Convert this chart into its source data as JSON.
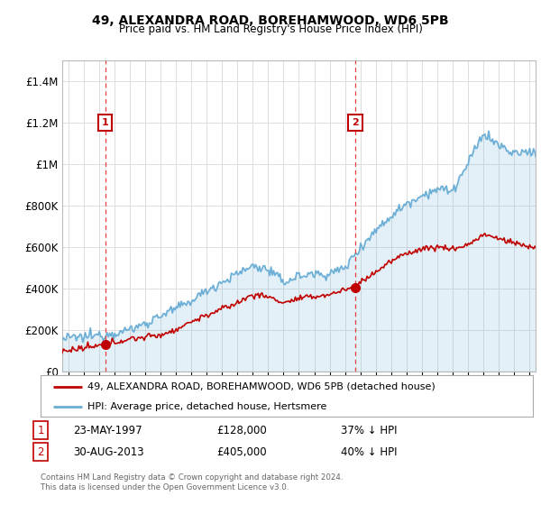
{
  "title": "49, ALEXANDRA ROAD, BOREHAMWOOD, WD6 5PB",
  "subtitle": "Price paid vs. HM Land Registry's House Price Index (HPI)",
  "ylabel_ticks": [
    "£0",
    "£200K",
    "£400K",
    "£600K",
    "£800K",
    "£1M",
    "£1.2M",
    "£1.4M"
  ],
  "ylim": [
    0,
    1500000
  ],
  "yticks": [
    0,
    200000,
    400000,
    600000,
    800000,
    1000000,
    1200000,
    1400000
  ],
  "sale1": {
    "date_num": 1997.39,
    "price": 128000,
    "label": "1",
    "date_str": "23-MAY-1997",
    "pct": "37% ↓ HPI"
  },
  "sale2": {
    "date_num": 2013.66,
    "price": 405000,
    "label": "2",
    "date_str": "30-AUG-2013",
    "pct": "40% ↓ HPI"
  },
  "hpi_color": "#6BAED6",
  "price_color": "#C00000",
  "vline_color": "#E84040",
  "background_color": "#FFFFFF",
  "grid_color": "#DDDDDD",
  "legend_entry1": "49, ALEXANDRA ROAD, BOREHAMWOOD, WD6 5PB (detached house)",
  "legend_entry2": "HPI: Average price, detached house, Hertsmere",
  "footer": "Contains HM Land Registry data © Crown copyright and database right 2024.\nThis data is licensed under the Open Government Licence v3.0.",
  "xlim_start": 1994.6,
  "xlim_end": 2025.4,
  "hpi_key_years": [
    1994.6,
    1995,
    1996,
    1997,
    1998,
    1999,
    2000,
    2001,
    2002,
    2003,
    2004,
    2005,
    2006,
    2007,
    2008,
    2009,
    2010,
    2011,
    2012,
    2013,
    2014,
    2015,
    2016,
    2017,
    2018,
    2019,
    2020,
    2021,
    2022,
    2023,
    2024,
    2025
  ],
  "hpi_key_values": [
    155000,
    160000,
    165000,
    175000,
    185000,
    200000,
    230000,
    270000,
    300000,
    340000,
    390000,
    430000,
    470000,
    510000,
    490000,
    430000,
    460000,
    470000,
    470000,
    500000,
    600000,
    680000,
    750000,
    810000,
    850000,
    880000,
    870000,
    1000000,
    1150000,
    1090000,
    1050000,
    1060000
  ],
  "price_key_years": [
    1994.6,
    1995,
    1996,
    1997,
    1997.39,
    1998,
    1999,
    2000,
    2001,
    2002,
    2003,
    2004,
    2005,
    2006,
    2007,
    2008,
    2009,
    2010,
    2011,
    2012,
    2013,
    2013.66,
    2014,
    2015,
    2016,
    2017,
    2018,
    2019,
    2020,
    2021,
    2022,
    2023,
    2024,
    2025
  ],
  "price_key_values": [
    95000,
    100000,
    110000,
    122000,
    128000,
    140000,
    155000,
    165000,
    175000,
    200000,
    240000,
    270000,
    300000,
    330000,
    370000,
    360000,
    330000,
    350000,
    360000,
    370000,
    395000,
    405000,
    430000,
    480000,
    530000,
    570000,
    590000,
    600000,
    590000,
    610000,
    660000,
    640000,
    620000,
    600000
  ]
}
